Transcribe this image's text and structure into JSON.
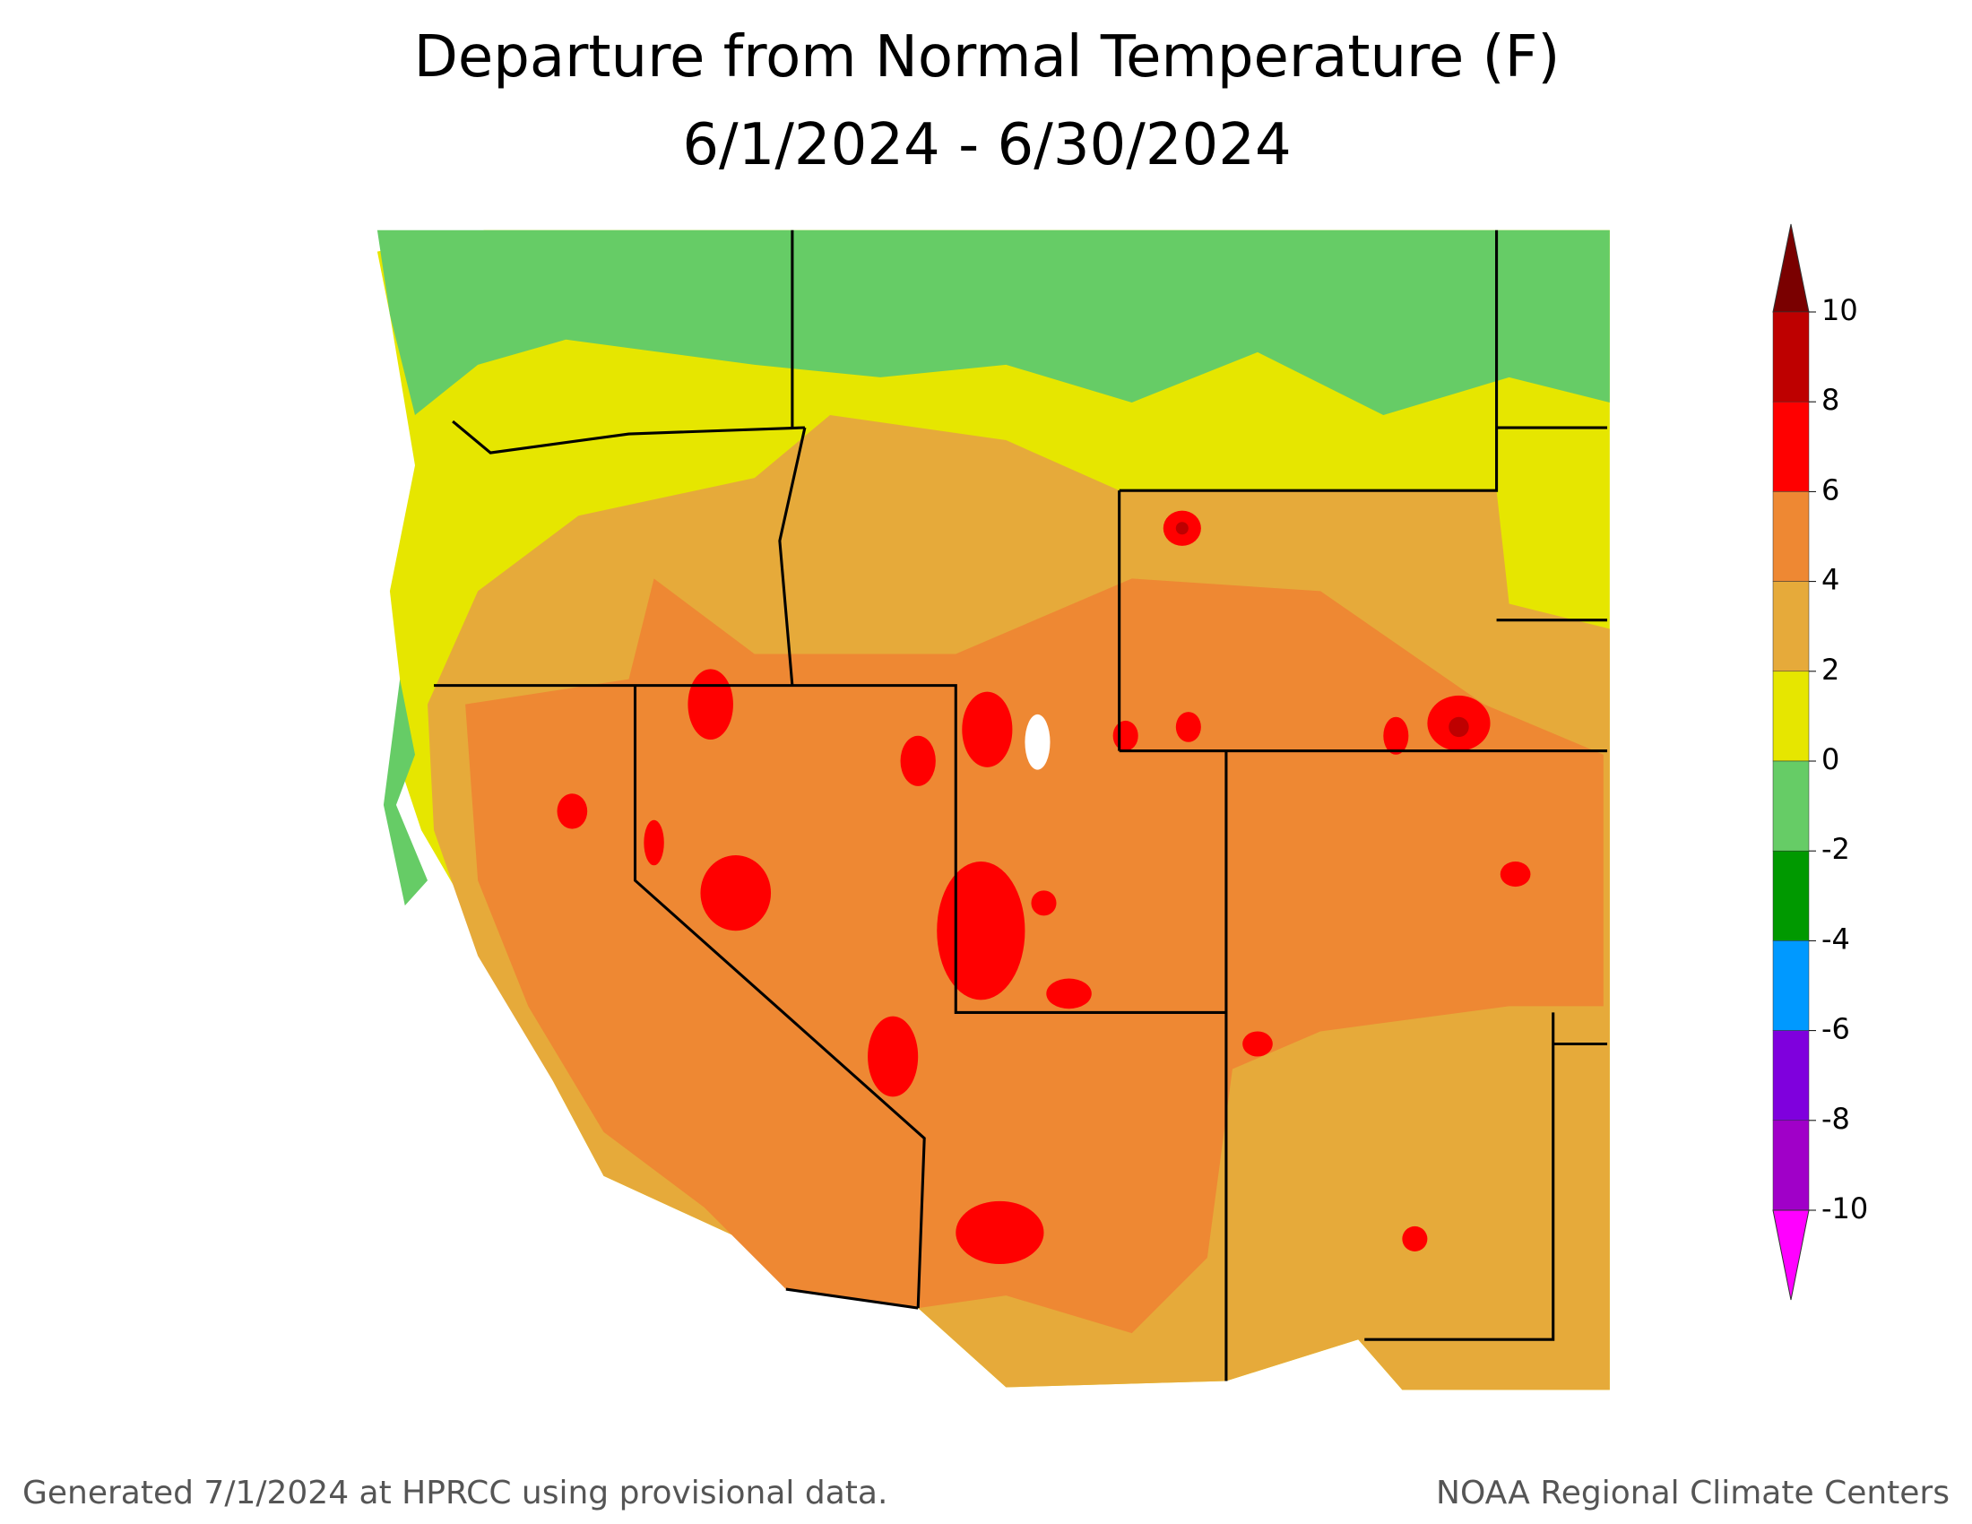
{
  "title": [
    "Departure from Normal Temperature (F)",
    "6/1/2024 - 6/30/2024"
  ],
  "colorbar": {
    "levels": [
      10,
      8,
      6,
      4,
      2,
      0,
      -2,
      -4,
      -6,
      -8,
      -10
    ],
    "colors": [
      "#7a0000",
      "#be0000",
      "#ff0000",
      "#ee8833",
      "#e6aa3a",
      "#e6e600",
      "#66cc66",
      "#009900",
      "#0099ff",
      "#7f00dd",
      "#a000c8",
      "#ff00ff"
    ]
  },
  "footer": {
    "left": "Generated 7/1/2024 at HPRCC using provisional data.",
    "right": "NOAA Regional Climate Centers"
  }
}
